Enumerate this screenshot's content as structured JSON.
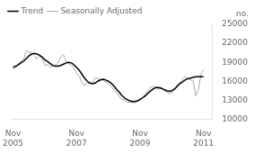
{
  "chart_data": {
    "type": "line",
    "ylabel": "no.",
    "x": [
      2005.83,
      2005.92,
      2006.0,
      2006.08,
      2006.17,
      2006.25,
      2006.33,
      2006.42,
      2006.5,
      2006.58,
      2006.67,
      2006.75,
      2006.83,
      2006.92,
      2007.0,
      2007.08,
      2007.17,
      2007.25,
      2007.33,
      2007.42,
      2007.5,
      2007.58,
      2007.67,
      2007.75,
      2007.83,
      2007.92,
      2008.0,
      2008.08,
      2008.17,
      2008.25,
      2008.33,
      2008.42,
      2008.5,
      2008.58,
      2008.67,
      2008.75,
      2008.83,
      2008.92,
      2009.0,
      2009.08,
      2009.17,
      2009.25,
      2009.33,
      2009.42,
      2009.5,
      2009.58,
      2009.67,
      2009.75,
      2009.83,
      2009.92,
      2010.0,
      2010.08,
      2010.17,
      2010.25,
      2010.33,
      2010.42,
      2010.5,
      2010.58,
      2010.67,
      2010.75,
      2010.83,
      2010.92,
      2011.0,
      2011.08,
      2011.17,
      2011.25,
      2011.33,
      2011.42,
      2011.5,
      2011.58,
      2011.67,
      2011.75,
      2011.83
    ],
    "series": [
      {
        "name": "Trend",
        "color": "#000000",
        "values": [
          18200,
          18400,
          18600,
          18900,
          19200,
          19600,
          20000,
          20300,
          20400,
          20300,
          20100,
          19800,
          19400,
          19100,
          18800,
          18500,
          18400,
          18400,
          18500,
          18700,
          18900,
          19000,
          18900,
          18600,
          18200,
          17700,
          17100,
          16500,
          16000,
          15700,
          15600,
          15700,
          16000,
          16200,
          16300,
          16200,
          16000,
          15700,
          15300,
          14800,
          14300,
          13800,
          13400,
          13100,
          12900,
          12800,
          12800,
          12900,
          13100,
          13400,
          13700,
          14100,
          14500,
          14800,
          15000,
          15000,
          14900,
          14700,
          14500,
          14400,
          14500,
          14800,
          15200,
          15600,
          15900,
          16200,
          16400,
          16500,
          16600,
          16700,
          16700,
          16700,
          16700
        ]
      },
      {
        "name": "Seasonally Adjusted",
        "color": "#aaaaaa",
        "values": [
          18000,
          18100,
          18800,
          19200,
          19500,
          20800,
          20600,
          20500,
          20100,
          19500,
          20000,
          19500,
          18500,
          18600,
          18200,
          18400,
          18500,
          18900,
          19800,
          20200,
          19100,
          18800,
          18500,
          18200,
          17200,
          16800,
          15700,
          15300,
          15800,
          15600,
          15700,
          16600,
          16400,
          16300,
          16100,
          15900,
          15600,
          15200,
          14700,
          14200,
          13600,
          13100,
          13100,
          12700,
          12600,
          12700,
          12600,
          12800,
          13200,
          13500,
          14000,
          14500,
          15100,
          15200,
          15000,
          14700,
          14900,
          14500,
          14300,
          14000,
          14200,
          14600,
          15300,
          15800,
          16300,
          16800,
          16500,
          16200,
          16100,
          13700,
          14700,
          17200,
          17800
        ]
      }
    ],
    "xlim": [
      2005.75,
      2012.1
    ],
    "xticks": [
      {
        "value": 2005.83,
        "label": "Nov\n2005"
      },
      {
        "value": 2007.83,
        "label": "Nov\n2007"
      },
      {
        "value": 2009.83,
        "label": "Nov\n2009"
      },
      {
        "value": 2011.83,
        "label": "Nov\n2011"
      }
    ],
    "ylim": [
      10000,
      25000
    ],
    "yticks": [
      10000,
      13000,
      16000,
      19000,
      22000,
      25000
    ],
    "grid": false,
    "legend": "upper left"
  }
}
